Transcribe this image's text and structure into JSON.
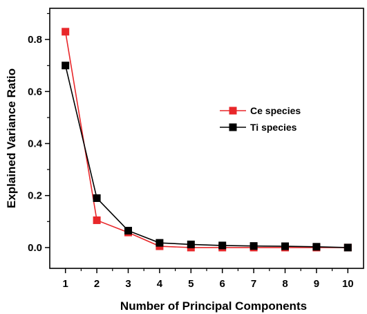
{
  "chart_data": {
    "type": "line",
    "title": "",
    "xlabel": "Number of Principal Components",
    "ylabel": "Explained Variance Ratio",
    "x": [
      1,
      2,
      3,
      4,
      5,
      6,
      7,
      8,
      9,
      10
    ],
    "xlim": [
      0.5,
      10.5
    ],
    "ylim": [
      -0.08,
      0.92
    ],
    "xticks": [
      1,
      2,
      3,
      4,
      5,
      6,
      7,
      8,
      9,
      10
    ],
    "yticks": [
      0.0,
      0.2,
      0.4,
      0.6,
      0.8
    ],
    "ytick_labels": [
      "0.0",
      "0.2",
      "0.4",
      "0.6",
      "0.8"
    ],
    "grid": false,
    "legend_position": "center-right",
    "series": [
      {
        "name": "Ce species",
        "color": "#e8272a",
        "marker": "square",
        "values": [
          0.83,
          0.105,
          0.058,
          0.005,
          0.0,
          0.0,
          0.0,
          0.0,
          0.0,
          0.0
        ]
      },
      {
        "name": "Ti species",
        "color": "#000000",
        "marker": "square",
        "values": [
          0.7,
          0.19,
          0.065,
          0.018,
          0.012,
          0.008,
          0.006,
          0.005,
          0.003,
          0.0
        ]
      }
    ]
  }
}
